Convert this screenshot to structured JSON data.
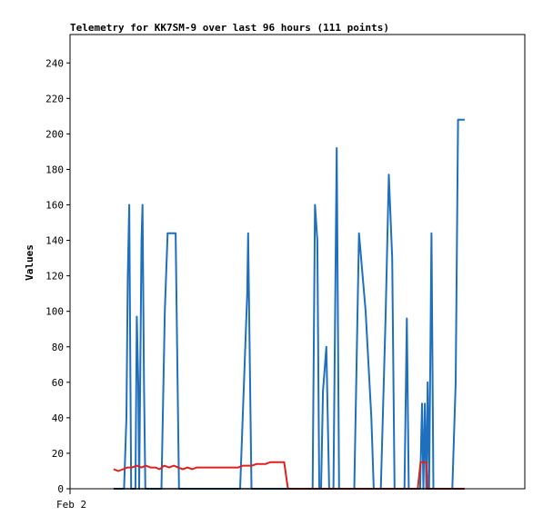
{
  "chart_data": {
    "type": "line",
    "title": "Telemetry for KK7SM-9 over last 96 hours (111 points)",
    "xlabel": "",
    "ylabel": "Values",
    "xlim": [
      0,
      96
    ],
    "ylim": [
      0,
      256
    ],
    "grid": false,
    "legend": "none",
    "y_ticks": [
      0,
      20,
      40,
      60,
      80,
      100,
      120,
      140,
      160,
      180,
      200,
      220,
      240
    ],
    "x_ticks": [
      {
        "x": 0,
        "label": "Feb 2"
      }
    ],
    "series": [
      {
        "color": "#1e6fbd",
        "points": [
          [
            9.2,
            0
          ],
          [
            11.4,
            0
          ],
          [
            11.9,
            40
          ],
          [
            12.2,
            120
          ],
          [
            12.5,
            160
          ],
          [
            12.9,
            0
          ],
          [
            13.8,
            0
          ],
          [
            14.1,
            97
          ],
          [
            14.4,
            60
          ],
          [
            14.6,
            0
          ],
          [
            15.1,
            140
          ],
          [
            15.3,
            160
          ],
          [
            15.6,
            60
          ],
          [
            15.9,
            0
          ],
          [
            18.9,
            0
          ],
          [
            19.3,
            0
          ],
          [
            20.0,
            100
          ],
          [
            20.6,
            144
          ],
          [
            22.3,
            144
          ],
          [
            23.0,
            0
          ],
          [
            35.1,
            0
          ],
          [
            35.9,
            0
          ],
          [
            37.4,
            110
          ],
          [
            37.6,
            144
          ],
          [
            38.3,
            0
          ],
          [
            50.3,
            0
          ],
          [
            51.2,
            0
          ],
          [
            51.7,
            160
          ],
          [
            52.2,
            140
          ],
          [
            52.6,
            0
          ],
          [
            53.0,
            0
          ],
          [
            53.4,
            55
          ],
          [
            54.1,
            80
          ],
          [
            54.7,
            0
          ],
          [
            55.6,
            0
          ],
          [
            56.3,
            192
          ],
          [
            56.8,
            0
          ],
          [
            60.0,
            0
          ],
          [
            61.0,
            144
          ],
          [
            62.4,
            100
          ],
          [
            63.6,
            40
          ],
          [
            64.1,
            0
          ],
          [
            65.6,
            0
          ],
          [
            66.6,
            96
          ],
          [
            67.3,
            177
          ],
          [
            68.0,
            130
          ],
          [
            68.5,
            0
          ],
          [
            70.6,
            0
          ],
          [
            71.1,
            96
          ],
          [
            71.5,
            0
          ],
          [
            73.9,
            0
          ],
          [
            74.3,
            48
          ],
          [
            74.6,
            0
          ],
          [
            74.9,
            48
          ],
          [
            75.2,
            0
          ],
          [
            75.5,
            60
          ],
          [
            75.8,
            0
          ],
          [
            76.3,
            144
          ],
          [
            76.7,
            0
          ],
          [
            80.7,
            0
          ],
          [
            81.4,
            60
          ],
          [
            81.9,
            208
          ],
          [
            83.3,
            208
          ]
        ]
      },
      {
        "color": "#e02020",
        "points": [
          [
            9.2,
            11
          ],
          [
            10.2,
            10
          ],
          [
            11.2,
            11
          ],
          [
            12.1,
            12
          ],
          [
            13.1,
            12
          ],
          [
            14.1,
            13
          ],
          [
            15.1,
            12
          ],
          [
            16.0,
            13
          ],
          [
            17.0,
            12
          ],
          [
            18.0,
            12
          ],
          [
            18.9,
            11
          ],
          [
            19.9,
            13
          ],
          [
            20.9,
            12
          ],
          [
            21.9,
            13
          ],
          [
            22.8,
            12
          ],
          [
            23.8,
            11
          ],
          [
            24.8,
            12
          ],
          [
            25.8,
            11
          ],
          [
            26.7,
            12
          ],
          [
            27.7,
            12
          ],
          [
            28.7,
            12
          ],
          [
            29.7,
            12
          ],
          [
            30.6,
            12
          ],
          [
            31.6,
            12
          ],
          [
            32.6,
            12
          ],
          [
            33.6,
            12
          ],
          [
            34.5,
            12
          ],
          [
            35.5,
            12
          ],
          [
            36.5,
            13
          ],
          [
            37.5,
            13
          ],
          [
            38.4,
            13
          ],
          [
            39.4,
            14
          ],
          [
            40.4,
            14
          ],
          [
            41.3,
            14
          ],
          [
            42.3,
            15
          ],
          [
            43.3,
            15
          ],
          [
            44.3,
            15
          ],
          [
            45.2,
            15
          ],
          [
            46.0,
            0
          ],
          [
            73.4,
            0
          ],
          [
            74.0,
            15
          ],
          [
            75.2,
            15
          ],
          [
            75.5,
            0
          ],
          [
            83.3,
            0
          ]
        ]
      },
      {
        "color": "#000000",
        "points": [
          [
            9.2,
            0
          ],
          [
            83.3,
            0
          ]
        ]
      }
    ]
  }
}
